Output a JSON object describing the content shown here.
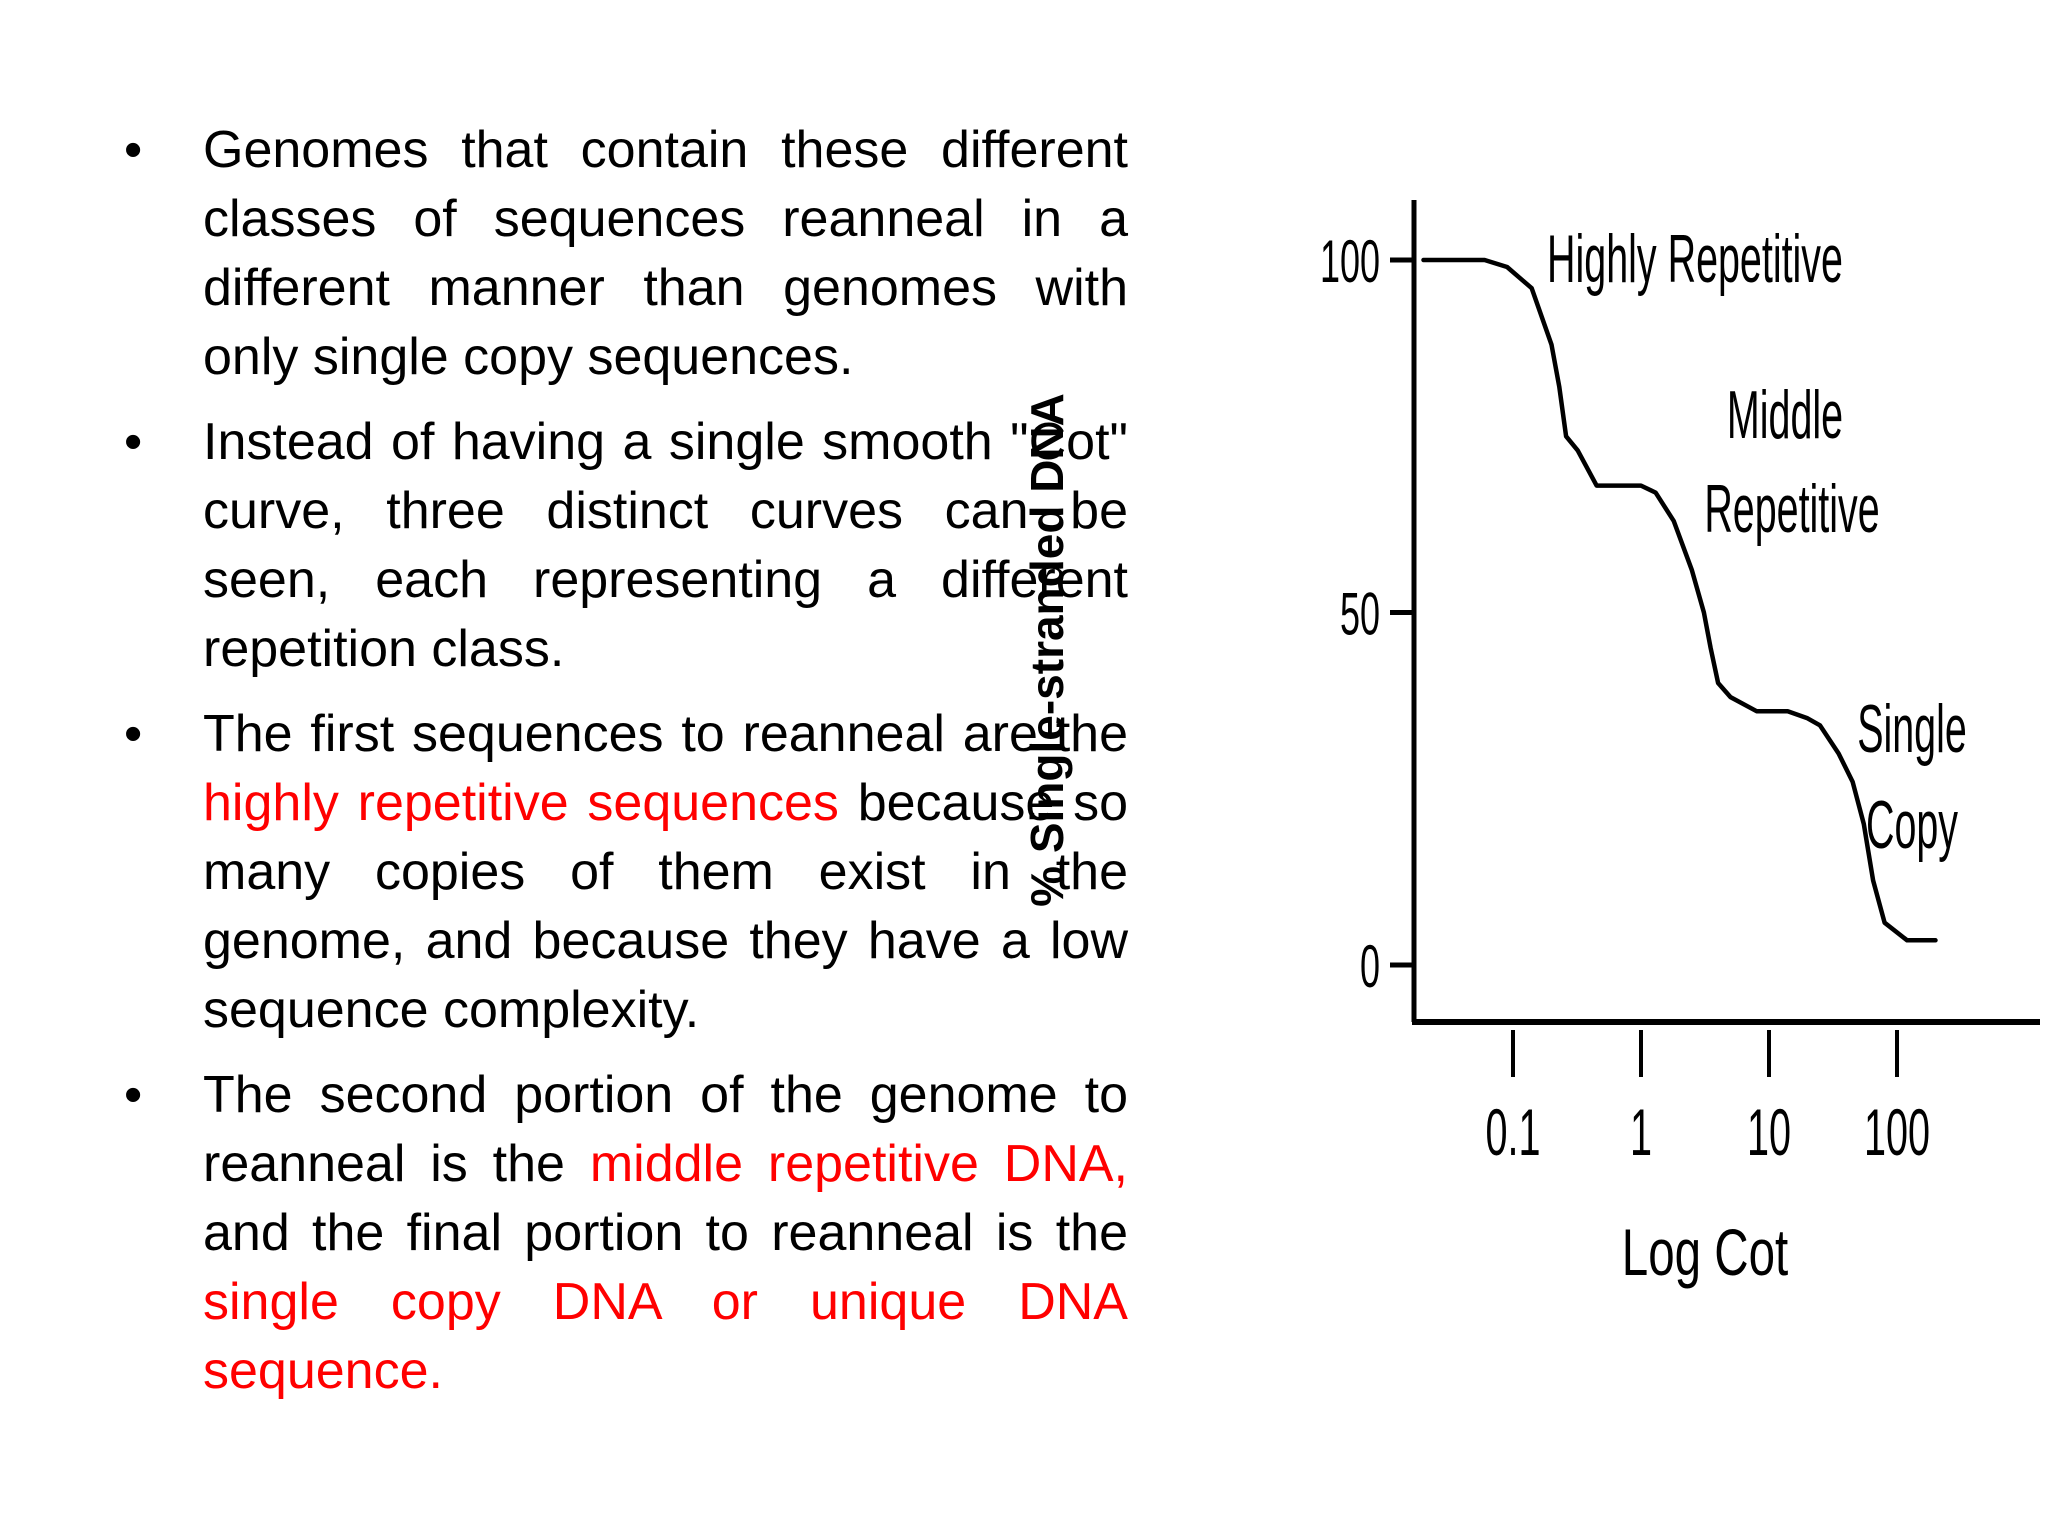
{
  "bullets": [
    {
      "parts": [
        {
          "text": "Genomes that contain these different classes of sequences reanneal in a different manner than genomes with only single copy sequences.",
          "color": "black"
        }
      ]
    },
    {
      "parts": [
        {
          "text": "Instead of having a single smooth \"Cot\" curve, three distinct curves can be seen, each representing a different repetition class.",
          "color": "black"
        }
      ]
    },
    {
      "parts": [
        {
          "text": "The first sequences to reanneal are the ",
          "color": "black"
        },
        {
          "text": "highly repetitive sequences",
          "color": "red"
        },
        {
          "text": " because so many copies of them exist in the genome, and because they have a low sequence complexity.",
          "color": "black"
        }
      ]
    },
    {
      "parts": [
        {
          "text": "The second portion of the genome to reanneal is the ",
          "color": "black"
        },
        {
          "text": "middle repetitive DNA,",
          "color": "red"
        },
        {
          "text": " and the final portion to reanneal is the ",
          "color": "black"
        },
        {
          "text": "single copy DNA or unique DNA sequence.",
          "color": "red"
        }
      ]
    }
  ],
  "bullet_symbol": "•",
  "colors": {
    "text": "#000000",
    "highlight": "#ff0000",
    "background": "#ffffff"
  },
  "chart_data": {
    "type": "line",
    "ylabel": "% Single-stranded DNA",
    "xlabel": "Log Cot",
    "x_scale": "log",
    "y_ticks": [
      0,
      50,
      100
    ],
    "x_ticks": [
      0.1,
      1,
      10,
      100
    ],
    "x_tick_labels": [
      "0.1",
      "1",
      "10",
      "100"
    ],
    "xlim": [
      0.01,
      1000
    ],
    "ylim": [
      -8,
      110
    ],
    "series": [
      {
        "x": [
          0.02,
          0.04,
          0.06,
          0.09,
          0.14,
          0.2,
          0.23,
          0.26,
          0.32,
          0.45,
          0.7,
          1.0,
          1.3,
          1.8,
          2.5,
          3.1,
          3.5,
          4.0,
          5.0,
          8,
          14,
          20,
          25,
          35,
          45,
          55,
          65,
          80,
          120,
          200
        ],
        "y": [
          100,
          100,
          100,
          99,
          96,
          88,
          82,
          75,
          73,
          68,
          68,
          68,
          67,
          63,
          56,
          50,
          45,
          40,
          38,
          36,
          36,
          35,
          34,
          30,
          26,
          20,
          12,
          6,
          3.5,
          3.5
        ]
      }
    ],
    "annotations": [
      {
        "text": "Highly Repetitive"
      },
      {
        "text": "Middle"
      },
      {
        "text": "Repetitive"
      },
      {
        "text": "Single"
      },
      {
        "text": "Copy"
      }
    ],
    "grid": false,
    "legend": "none"
  }
}
